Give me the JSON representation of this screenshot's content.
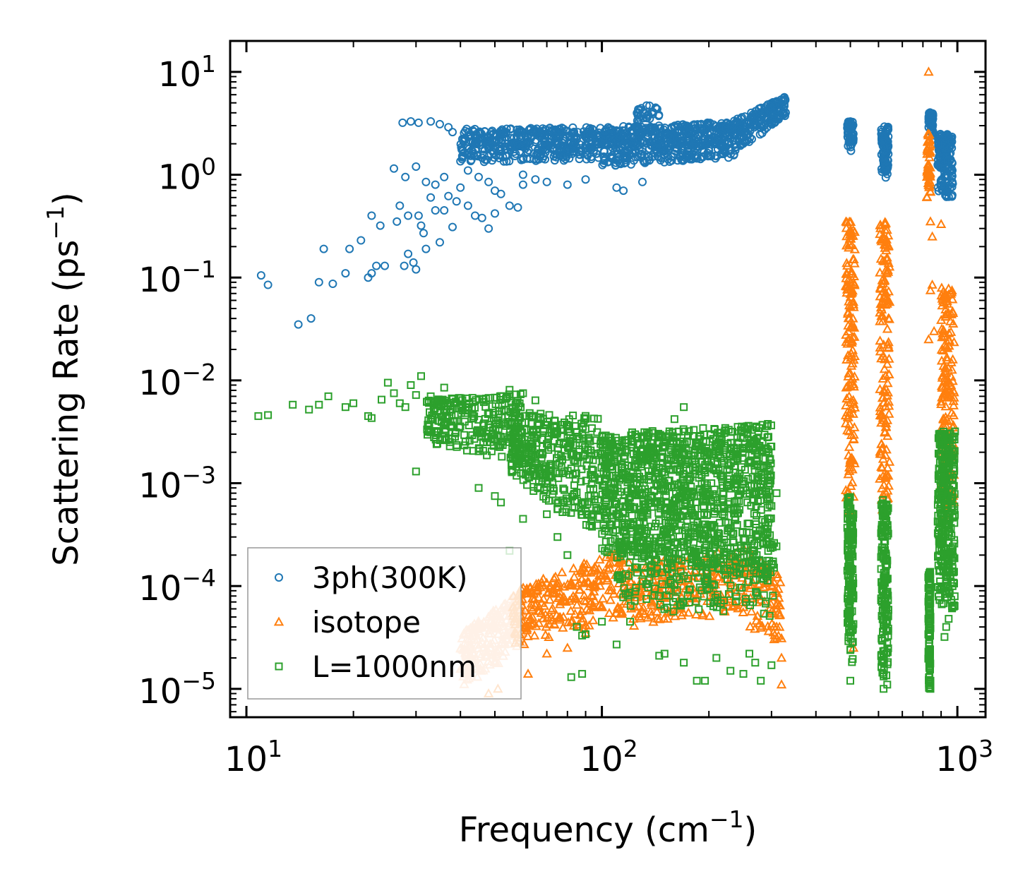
{
  "chart_data": {
    "type": "scatter",
    "title": "",
    "xlabel": "Frequency (cm",
    "xlabel_sup": "−1",
    "xlabel_tail": ")",
    "ylabel": "Scattering Rate (ps",
    "ylabel_sup": "−1",
    "ylabel_tail": ")",
    "xscale": "log",
    "yscale": "log",
    "xlim": [
      9.0,
      1200
    ],
    "ylim": [
      5.3e-06,
      20
    ],
    "x_ticks": [
      {
        "value": 10,
        "base": "10",
        "exp": "1"
      },
      {
        "value": 100,
        "base": "10",
        "exp": "2"
      },
      {
        "value": 1000,
        "base": "10",
        "exp": "3"
      }
    ],
    "y_ticks": [
      {
        "value": 1e-05,
        "base": "10",
        "exp": "−5"
      },
      {
        "value": 0.0001,
        "base": "10",
        "exp": "−4"
      },
      {
        "value": 0.001,
        "base": "10",
        "exp": "−3"
      },
      {
        "value": 0.01,
        "base": "10",
        "exp": "−2"
      },
      {
        "value": 0.1,
        "base": "10",
        "exp": "−1"
      },
      {
        "value": 1,
        "base": "10",
        "exp": "0"
      },
      {
        "value": 10,
        "base": "10",
        "exp": "1"
      }
    ],
    "legend_position": "lower-left",
    "series": [
      {
        "name": "3ph(300K)",
        "marker": "circle",
        "color": "#1f77b4",
        "points": [
          [
            11,
            0.105
          ],
          [
            11.5,
            0.085
          ],
          [
            14,
            0.035
          ],
          [
            15.2,
            0.04
          ],
          [
            16,
            0.09
          ],
          [
            16.5,
            0.19
          ],
          [
            17.5,
            0.087
          ],
          [
            19,
            0.11
          ],
          [
            19.5,
            0.19
          ],
          [
            21,
            0.23
          ],
          [
            22,
            0.1
          ],
          [
            22.5,
            0.4
          ],
          [
            22.5,
            0.11
          ],
          [
            23.2,
            0.13
          ],
          [
            23.8,
            0.32
          ],
          [
            24.5,
            0.13
          ],
          [
            26.5,
            0.35
          ],
          [
            27,
            0.5
          ],
          [
            27.8,
            0.13
          ],
          [
            28.5,
            0.17
          ],
          [
            28.5,
            0.4
          ],
          [
            29.5,
            0.14
          ],
          [
            30,
            0.12
          ],
          [
            30.5,
            0.4
          ],
          [
            31,
            0.32
          ],
          [
            31.5,
            0.27
          ],
          [
            32,
            0.19
          ],
          [
            33,
            0.6
          ],
          [
            34,
            0.45
          ],
          [
            35,
            0.22
          ],
          [
            36,
            0.45
          ],
          [
            37,
            0.62
          ],
          [
            38,
            0.31
          ],
          [
            39,
            0.55
          ],
          [
            40,
            0.75
          ],
          [
            42,
            0.5
          ],
          [
            44,
            0.4
          ],
          [
            46,
            0.38
          ],
          [
            48,
            0.3
          ],
          [
            50,
            0.42
          ],
          [
            52,
            0.65
          ],
          [
            55,
            0.5
          ],
          [
            58,
            0.48
          ],
          [
            60,
            0.8
          ],
          [
            27.5,
            3.2
          ],
          [
            29,
            3.3
          ],
          [
            30.5,
            3.2
          ],
          [
            33,
            3.3
          ],
          [
            35,
            3.1
          ],
          [
            37,
            2.9
          ],
          [
            38,
            2.6
          ],
          [
            40,
            1.35
          ],
          [
            42,
            1.1
          ],
          [
            45,
            0.95
          ],
          [
            48,
            0.85
          ],
          [
            50,
            0.7
          ],
          [
            26,
            1.15
          ],
          [
            28,
            0.95
          ],
          [
            30,
            1.2
          ],
          [
            32,
            0.85
          ],
          [
            34,
            0.8
          ],
          [
            36,
            0.95
          ],
          [
            60,
            1.0
          ],
          [
            65,
            0.9
          ],
          [
            70,
            0.85
          ],
          [
            80,
            0.8
          ],
          [
            90,
            0.9
          ],
          [
            110,
            0.75
          ],
          [
            115,
            0.7
          ],
          [
            130,
            0.85
          ]
        ],
        "bands": [
          {
            "x_from": 40,
            "x_to": 100,
            "y_lo": [
              1.3,
              1.4
            ],
            "y_hi": [
              2.8,
              2.9
            ],
            "n": 420
          },
          {
            "x_from": 100,
            "x_to": 230,
            "y_lo": [
              1.2,
              1.45
            ],
            "y_hi": [
              2.9,
              3.3
            ],
            "n": 520
          },
          {
            "x_from": 125,
            "x_to": 145,
            "y_lo": [
              3.0,
              3.3
            ],
            "y_hi": [
              4.5,
              5.0
            ],
            "n": 30
          },
          {
            "x_from": 230,
            "x_to": 330,
            "y_lo": [
              1.45,
              3.8
            ],
            "y_hi": [
              3.3,
              5.8
            ],
            "n": 200
          },
          {
            "x_from": 490,
            "x_to": 510,
            "y_lo": [
              1.7
            ],
            "y_hi": [
              3.3
            ],
            "n": 60
          },
          {
            "x_from": 610,
            "x_to": 640,
            "y_lo": [
              0.9
            ],
            "y_hi": [
              3.0
            ],
            "n": 80
          },
          {
            "x_from": 830,
            "x_to": 855,
            "y_lo": [
              2.4
            ],
            "y_hi": [
              4.1
            ],
            "n": 50
          },
          {
            "x_from": 880,
            "x_to": 970,
            "y_lo": [
              0.6
            ],
            "y_hi": [
              2.5
            ],
            "n": 160
          }
        ]
      },
      {
        "name": "isotope",
        "marker": "triangle",
        "color": "#ff7f0e",
        "light_color": "#ffbb88",
        "points": [
          [
            830,
            10
          ],
          [
            320,
            1.1e-05
          ],
          [
            320,
            2e-05
          ],
          [
            320,
            3.1e-05
          ],
          [
            48,
            9e-06
          ],
          [
            51,
            1e-05
          ],
          [
            62,
            1.4e-05
          ],
          [
            70,
            2.2e-05
          ],
          [
            80,
            2.5e-05
          ],
          [
            90,
            3.5e-05
          ],
          [
            840,
            0.35
          ],
          [
            850,
            0.25
          ],
          [
            900,
            0.33
          ],
          [
            840,
            0.075
          ],
          [
            850,
            0.085
          ],
          [
            830,
            0.025
          ],
          [
            860,
            0.03
          ],
          [
            510,
            2.5e-05
          ]
        ],
        "bands": [
          {
            "x_from": 40,
            "x_to": 60,
            "y_lo": [
              1e-05,
              2.5e-05
            ],
            "y_hi": [
              3.5e-05,
              9e-05
            ],
            "n": 240,
            "light": true
          },
          {
            "x_from": 56,
            "x_to": 120,
            "y_lo": [
              2.5e-05,
              5e-05
            ],
            "y_hi": [
              9e-05,
              0.00025
            ],
            "n": 280
          },
          {
            "x_from": 120,
            "x_to": 260,
            "y_lo": [
              4e-05,
              5.5e-05
            ],
            "y_hi": [
              0.00016,
              0.00024
            ],
            "n": 240
          },
          {
            "x_from": 260,
            "x_to": 320,
            "y_lo": [
              4e-05,
              2.5e-05
            ],
            "y_hi": [
              0.00024,
              0.00012
            ],
            "n": 80
          },
          {
            "x_from": 485,
            "x_to": 515,
            "y_lo": [
              0.0005
            ],
            "y_hi": [
              0.35
            ],
            "n": 150
          },
          {
            "x_from": 605,
            "x_to": 645,
            "y_lo": [
              0.0005
            ],
            "y_hi": [
              0.35
            ],
            "n": 150
          },
          {
            "x_from": 820,
            "x_to": 840,
            "y_lo": [
              0.6
            ],
            "y_hi": [
              2.5
            ],
            "n": 50
          },
          {
            "x_from": 900,
            "x_to": 980,
            "y_lo": [
              0.0004
            ],
            "y_hi": [
              0.08
            ],
            "n": 160
          }
        ]
      },
      {
        "name": "L=1000nm",
        "marker": "square",
        "color": "#2ca02c",
        "points": [
          [
            10.8,
            0.0045
          ],
          [
            11.5,
            0.0046
          ],
          [
            13.5,
            0.0058
          ],
          [
            15,
            0.0052
          ],
          [
            16,
            0.0058
          ],
          [
            17,
            0.007
          ],
          [
            19,
            0.0055
          ],
          [
            20,
            0.006
          ],
          [
            22,
            0.0045
          ],
          [
            22.5,
            0.0043
          ],
          [
            24,
            0.0065
          ],
          [
            25,
            0.0095
          ],
          [
            26,
            0.0075
          ],
          [
            27,
            0.006
          ],
          [
            28,
            0.0055
          ],
          [
            29,
            0.009
          ],
          [
            30,
            0.0072
          ],
          [
            31,
            0.011
          ],
          [
            33,
            0.007
          ],
          [
            36,
            0.0085
          ],
          [
            30,
            0.0013
          ],
          [
            45,
            0.0009
          ],
          [
            50,
            0.00075
          ],
          [
            52,
            0.00065
          ],
          [
            55,
            0.00022
          ],
          [
            60,
            0.00045
          ],
          [
            70,
            0.0005
          ],
          [
            75,
            0.0003
          ],
          [
            80,
            0.0002
          ],
          [
            85,
            4e-05
          ],
          [
            88,
            3.3e-05
          ],
          [
            90,
            3.4e-05
          ],
          [
            82,
            1.3e-05
          ],
          [
            88,
            1.4e-05
          ],
          [
            100,
            4.5e-05
          ],
          [
            120,
            4.5e-05
          ],
          [
            110,
            2.7e-05
          ],
          [
            145,
            2.1e-05
          ],
          [
            150,
            2.2e-05
          ],
          [
            170,
            1.8e-05
          ],
          [
            185,
            1.2e-05
          ],
          [
            195,
            1.2e-05
          ],
          [
            210,
            2e-05
          ],
          [
            230,
            1.5e-05
          ],
          [
            250,
            1.4e-05
          ],
          [
            260,
            2.2e-05
          ],
          [
            270,
            1.8e-05
          ],
          [
            280,
            1.2e-05
          ],
          [
            300,
            1.7e-05
          ],
          [
            310,
            0.0008
          ],
          [
            300,
            0.0006
          ],
          [
            170,
            0.0055
          ],
          [
            160,
            0.0042
          ],
          [
            60,
            0.0075
          ],
          [
            55,
            0.0081
          ],
          [
            65,
            0.0064
          ],
          [
            840,
            1e-05
          ],
          [
            840,
            1.2e-05
          ],
          [
            500,
            1.2e-05
          ],
          [
            620,
            1e-05
          ],
          [
            635,
            1.1e-05
          ],
          [
            920,
            3.2e-05
          ],
          [
            930,
            4e-05
          ],
          [
            945,
            4.8e-05
          ]
        ],
        "bands": [
          {
            "x_from": 32,
            "x_to": 60,
            "y_lo": [
              0.0025,
              0.0015
            ],
            "y_hi": [
              0.0065,
              0.0075
            ],
            "n": 260
          },
          {
            "x_from": 55,
            "x_to": 100,
            "y_lo": [
              0.001,
              0.0003
            ],
            "y_hi": [
              0.005,
              0.0045
            ],
            "n": 360
          },
          {
            "x_from": 100,
            "x_to": 300,
            "y_lo": [
              0.0002,
              0.00012
            ],
            "y_hi": [
              0.003,
              0.0038
            ],
            "n": 1100
          },
          {
            "x_from": 110,
            "x_to": 310,
            "y_lo": [
              6e-05,
              5e-05
            ],
            "y_hi": [
              0.0003,
              0.0003
            ],
            "n": 260
          },
          {
            "x_from": 490,
            "x_to": 510,
            "y_lo": [
              1.8e-05
            ],
            "y_hi": [
              0.00075
            ],
            "n": 160
          },
          {
            "x_from": 610,
            "x_to": 640,
            "y_lo": [
              1.3e-05
            ],
            "y_hi": [
              0.0007
            ],
            "n": 160
          },
          {
            "x_from": 828,
            "x_to": 840,
            "y_lo": [
              1e-05
            ],
            "y_hi": [
              0.00014
            ],
            "n": 110
          },
          {
            "x_from": 880,
            "x_to": 985,
            "y_lo": [
              6e-05
            ],
            "y_hi": [
              0.0033
            ],
            "n": 320
          }
        ]
      }
    ]
  }
}
